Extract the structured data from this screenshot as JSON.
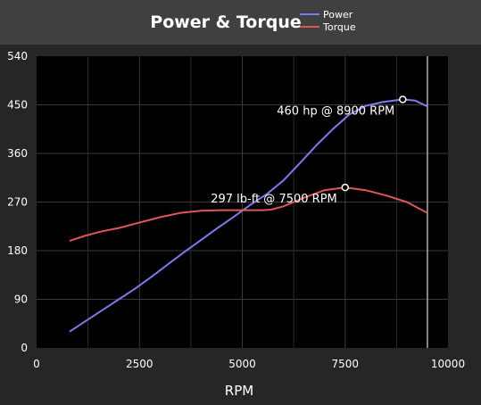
{
  "chart_data": {
    "type": "line",
    "title": "Power & Torque",
    "xlabel": "RPM",
    "ylabel": "",
    "xlim": [
      0,
      10000
    ],
    "ylim": [
      0,
      540
    ],
    "x_ticks": [
      0,
      2500,
      5000,
      7500,
      10000
    ],
    "y_ticks": [
      0,
      90,
      180,
      270,
      360,
      450,
      540
    ],
    "grid": true,
    "legend_position": "top-right",
    "limit_line_x": 9500,
    "series": [
      {
        "name": "Power",
        "color": "#7b7bf0",
        "x": [
          800,
          1200,
          1600,
          2000,
          2400,
          2800,
          3200,
          3600,
          4000,
          4400,
          4800,
          5200,
          5600,
          6000,
          6400,
          6800,
          7200,
          7600,
          8000,
          8400,
          8900,
          9200,
          9500
        ],
        "values": [
          30,
          50,
          70,
          90,
          110,
          132,
          155,
          178,
          200,
          222,
          243,
          265,
          285,
          310,
          342,
          375,
          405,
          432,
          448,
          455,
          460,
          458,
          447
        ]
      },
      {
        "name": "Torque",
        "color": "#e05555",
        "x": [
          800,
          1200,
          1600,
          2000,
          2500,
          3000,
          3500,
          4000,
          4500,
          5000,
          5500,
          5700,
          6000,
          6500,
          7000,
          7500,
          8000,
          8500,
          9000,
          9500
        ],
        "values": [
          198,
          208,
          216,
          222,
          232,
          242,
          250,
          254,
          255,
          255,
          255,
          256,
          262,
          278,
          292,
          297,
          292,
          282,
          270,
          250
        ]
      }
    ],
    "annotations": [
      {
        "text": "460 hp @ 8900 RPM",
        "x": 8900,
        "y": 460,
        "series": "Power"
      },
      {
        "text": "297 lb-ft @ 7500 RPM",
        "x": 7500,
        "y": 297,
        "series": "Torque"
      }
    ]
  }
}
